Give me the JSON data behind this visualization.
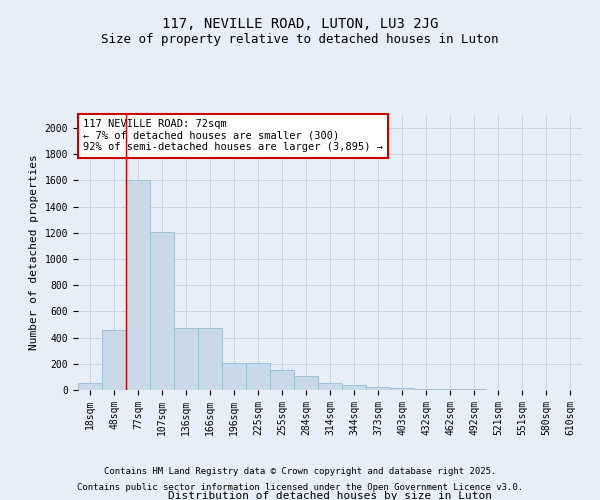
{
  "title1": "117, NEVILLE ROAD, LUTON, LU3 2JG",
  "title2": "Size of property relative to detached houses in Luton",
  "xlabel": "Distribution of detached houses by size in Luton",
  "ylabel": "Number of detached properties",
  "categories": [
    "18sqm",
    "48sqm",
    "77sqm",
    "107sqm",
    "136sqm",
    "166sqm",
    "196sqm",
    "225sqm",
    "255sqm",
    "284sqm",
    "314sqm",
    "344sqm",
    "373sqm",
    "403sqm",
    "432sqm",
    "462sqm",
    "492sqm",
    "521sqm",
    "551sqm",
    "580sqm",
    "610sqm"
  ],
  "values": [
    50,
    460,
    1600,
    1210,
    475,
    475,
    210,
    210,
    155,
    105,
    55,
    40,
    25,
    15,
    10,
    5,
    5,
    2,
    2,
    1,
    1
  ],
  "bar_color": "#c9d9e8",
  "bar_edge_color": "#8ab4cc",
  "grid_color": "#c8d4e4",
  "background_color": "#e8eef8",
  "annotation_box_text": "117 NEVILLE ROAD: 72sqm\n← 7% of detached houses are smaller (300)\n92% of semi-detached houses are larger (3,895) →",
  "annotation_box_color": "#ffffff",
  "annotation_box_edge_color": "#cc0000",
  "vline_color": "#cc0000",
  "footer1": "Contains HM Land Registry data © Crown copyright and database right 2025.",
  "footer2": "Contains public sector information licensed under the Open Government Licence v3.0.",
  "ylim": [
    0,
    2100
  ],
  "yticks": [
    0,
    200,
    400,
    600,
    800,
    1000,
    1200,
    1400,
    1600,
    1800,
    2000
  ],
  "title_fontsize": 10,
  "subtitle_fontsize": 9,
  "axis_label_fontsize": 8,
  "tick_fontsize": 7,
  "annotation_fontsize": 7.5,
  "footer_fontsize": 6.5
}
